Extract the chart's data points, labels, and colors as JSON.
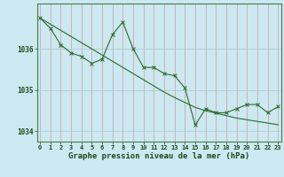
{
  "hours": [
    0,
    1,
    2,
    3,
    4,
    5,
    6,
    7,
    8,
    9,
    10,
    11,
    12,
    13,
    14,
    15,
    16,
    17,
    18,
    19,
    20,
    21,
    22,
    23
  ],
  "pressure": [
    1036.75,
    1036.5,
    1036.1,
    1035.9,
    1035.82,
    1035.65,
    1035.75,
    1036.35,
    1036.65,
    1036.0,
    1035.55,
    1035.55,
    1035.4,
    1035.35,
    1035.05,
    1034.15,
    1034.55,
    1034.45,
    1034.45,
    1034.55,
    1034.65,
    1034.65,
    1034.45,
    1034.6
  ],
  "trend": [
    1036.75,
    1036.6,
    1036.45,
    1036.3,
    1036.15,
    1036.0,
    1035.85,
    1035.7,
    1035.55,
    1035.4,
    1035.25,
    1035.1,
    1034.95,
    1034.82,
    1034.7,
    1034.58,
    1034.5,
    1034.44,
    1034.38,
    1034.32,
    1034.28,
    1034.24,
    1034.2,
    1034.16
  ],
  "ylim": [
    1033.75,
    1037.1
  ],
  "yticks": [
    1034,
    1035,
    1036
  ],
  "xticks": [
    0,
    1,
    2,
    3,
    4,
    5,
    6,
    7,
    8,
    9,
    10,
    11,
    12,
    13,
    14,
    15,
    16,
    17,
    18,
    19,
    20,
    21,
    22,
    23
  ],
  "line_color": "#2d6a2d",
  "bg_color": "#cce8f0",
  "vgrid_color": "#c8a0a0",
  "hgrid_color": "#a8c8d0",
  "xlabel": "Graphe pression niveau de la mer (hPa)",
  "xlabel_color": "#1a4a1a",
  "tick_fontsize": 5.0,
  "xlabel_fontsize": 6.5
}
